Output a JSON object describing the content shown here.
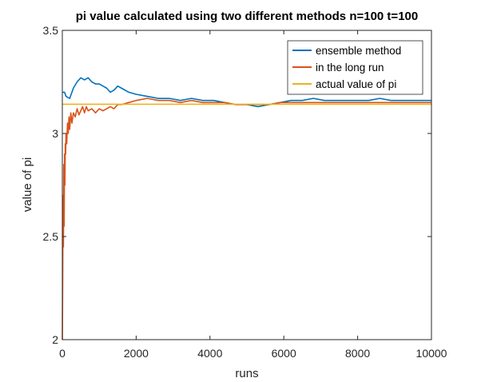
{
  "chart_data": {
    "type": "line",
    "title": "pi value calculated using two different methods n=100  t=100",
    "xlabel": "runs",
    "ylabel": "value of pi",
    "xlim": [
      0,
      10000
    ],
    "ylim": [
      2,
      3.5
    ],
    "xticks": [
      "0",
      "2000",
      "4000",
      "6000",
      "8000",
      "10000"
    ],
    "yticks": [
      "2",
      "2.5",
      "3",
      "3.5"
    ],
    "legend_position": "top-right",
    "grid": false,
    "series": [
      {
        "name": "ensemble method",
        "color": "#0072BD",
        "x": [
          1,
          60,
          100,
          200,
          300,
          400,
          500,
          600,
          700,
          800,
          900,
          1000,
          1100,
          1200,
          1300,
          1400,
          1500,
          1600,
          1800,
          2000,
          2300,
          2600,
          2900,
          3200,
          3500,
          3800,
          4100,
          4400,
          4700,
          5000,
          5300,
          5600,
          5900,
          6200,
          6500,
          6800,
          7100,
          7400,
          7700,
          8000,
          8300,
          8600,
          8900,
          9200,
          9500,
          9800,
          10000
        ],
        "y": [
          3.2,
          3.2,
          3.18,
          3.17,
          3.22,
          3.25,
          3.27,
          3.26,
          3.27,
          3.25,
          3.24,
          3.24,
          3.23,
          3.22,
          3.2,
          3.21,
          3.23,
          3.22,
          3.2,
          3.19,
          3.18,
          3.17,
          3.17,
          3.16,
          3.17,
          3.16,
          3.16,
          3.15,
          3.14,
          3.14,
          3.13,
          3.14,
          3.15,
          3.16,
          3.16,
          3.17,
          3.16,
          3.16,
          3.16,
          3.16,
          3.16,
          3.17,
          3.16,
          3.16,
          3.16,
          3.16,
          3.16
        ]
      },
      {
        "name": "in the long run",
        "color": "#D95319",
        "x": [
          1,
          10,
          20,
          30,
          40,
          50,
          60,
          70,
          80,
          90,
          100,
          120,
          140,
          160,
          180,
          200,
          230,
          260,
          300,
          350,
          400,
          450,
          500,
          550,
          600,
          650,
          700,
          800,
          900,
          1000,
          1100,
          1200,
          1300,
          1400,
          1500,
          1600,
          1800,
          2000,
          2300,
          2600,
          2900,
          3200,
          3500,
          3800,
          4100,
          4400,
          4700,
          5000,
          5300,
          5600,
          5900,
          6200,
          6500,
          6800,
          7100,
          7400,
          7700,
          8000,
          8300,
          8600,
          8900,
          9200,
          9500,
          9800,
          10000
        ],
        "y": [
          2.0,
          2.3,
          2.7,
          2.45,
          2.85,
          2.55,
          2.9,
          2.75,
          2.95,
          2.9,
          3.0,
          2.95,
          3.05,
          3.0,
          3.08,
          3.02,
          3.1,
          3.05,
          3.1,
          3.08,
          3.12,
          3.09,
          3.11,
          3.13,
          3.1,
          3.13,
          3.11,
          3.12,
          3.1,
          3.12,
          3.11,
          3.12,
          3.13,
          3.12,
          3.14,
          3.14,
          3.15,
          3.16,
          3.17,
          3.16,
          3.16,
          3.15,
          3.16,
          3.15,
          3.15,
          3.15,
          3.14,
          3.14,
          3.14,
          3.14,
          3.15,
          3.15,
          3.15,
          3.15,
          3.15,
          3.15,
          3.15,
          3.15,
          3.15,
          3.15,
          3.15,
          3.15,
          3.15,
          3.15,
          3.15
        ]
      },
      {
        "name": "actual value of pi",
        "color": "#EDB120",
        "x": [
          0,
          10000
        ],
        "y": [
          3.1416,
          3.1416
        ]
      }
    ]
  }
}
